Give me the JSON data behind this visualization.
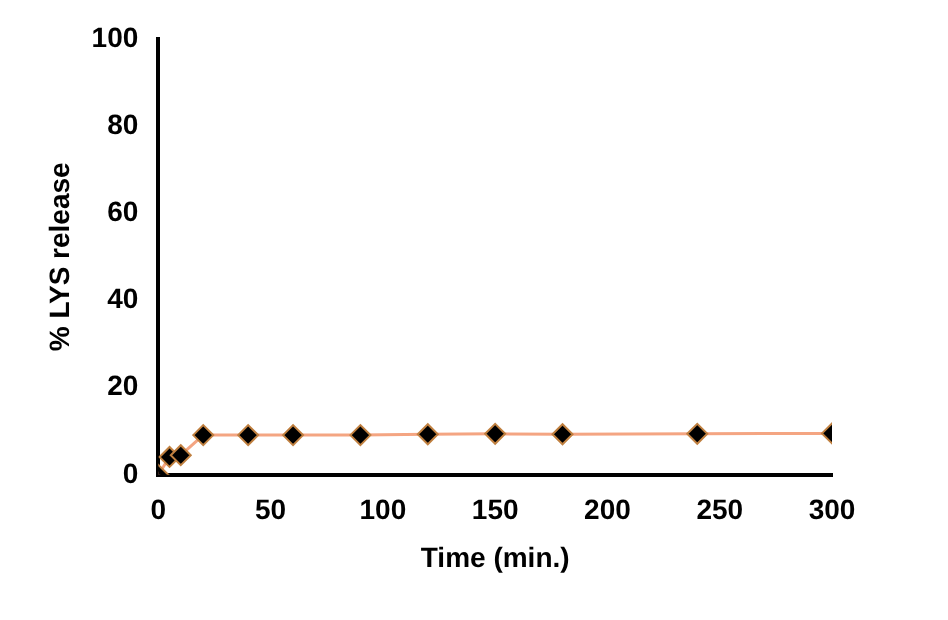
{
  "chart_data": {
    "type": "line",
    "xlabel": "Time (min.)",
    "ylabel": "% LYS release",
    "x": [
      0,
      5,
      10,
      20,
      40,
      60,
      90,
      120,
      150,
      180,
      240,
      300
    ],
    "series": [
      {
        "color": "#f4a582",
        "values": [
          0,
          4.1,
          4.5,
          9.1,
          9.1,
          9.1,
          9.1,
          9.3,
          9.4,
          9.3,
          9.4,
          9.5
        ]
      }
    ],
    "xlim": [
      0,
      300
    ],
    "xticks": [
      0,
      50,
      100,
      150,
      200,
      250,
      300
    ],
    "ylim": [
      0,
      100
    ],
    "yticks": [
      0,
      20,
      40,
      60,
      80,
      100
    ],
    "grid": false,
    "legend": false,
    "marker": "diamond",
    "line_style": "solid"
  }
}
